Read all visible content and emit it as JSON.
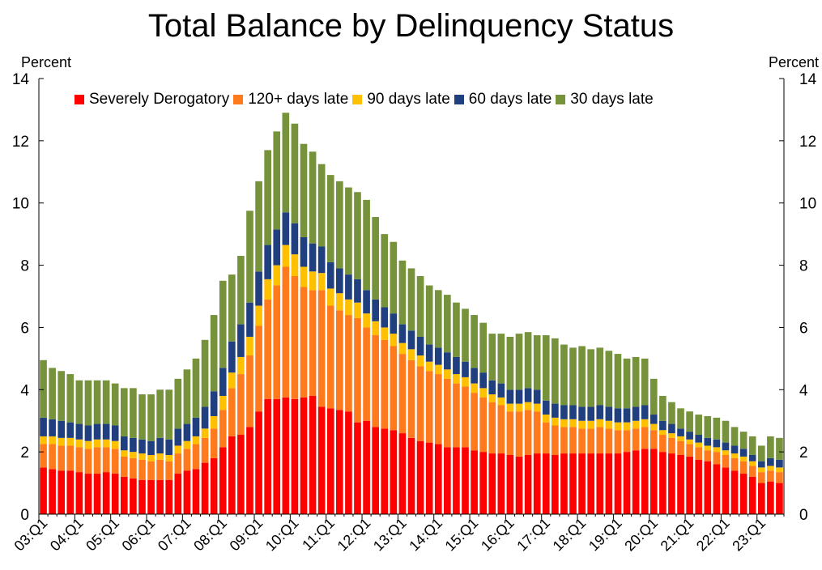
{
  "title": "Total Balance by Delinquency Status",
  "left_unit": "Percent",
  "right_unit": "Percent",
  "chart_data": {
    "type": "stacked-bar",
    "title": "Total Balance by Delinquency Status",
    "ylabel": "Percent",
    "ylim": [
      0,
      14
    ],
    "yticks": [
      "0",
      "2",
      "4",
      "6",
      "8",
      "10",
      "12",
      "14"
    ],
    "tick_labels": [
      "03:Q1",
      "04:Q1",
      "05:Q1",
      "06:Q1",
      "07:Q1",
      "08:Q1",
      "09:Q1",
      "10:Q1",
      "11:Q1",
      "12:Q1",
      "13:Q1",
      "14:Q1",
      "15:Q1",
      "16:Q1",
      "17:Q1",
      "18:Q1",
      "19:Q1",
      "20:Q1",
      "21:Q1",
      "22:Q1",
      "23:Q1"
    ],
    "quarters_count": 83,
    "legend_position": "top-left",
    "series": [
      {
        "name": "Severely Derogatory",
        "color": "#ff0000",
        "values": [
          1.5,
          1.45,
          1.4,
          1.4,
          1.35,
          1.3,
          1.3,
          1.35,
          1.3,
          1.2,
          1.15,
          1.1,
          1.1,
          1.1,
          1.1,
          1.3,
          1.4,
          1.45,
          1.65,
          1.8,
          2.15,
          2.5,
          2.55,
          2.8,
          3.3,
          3.7,
          3.7,
          3.75,
          3.7,
          3.75,
          3.8,
          3.45,
          3.4,
          3.35,
          3.3,
          2.95,
          3.0,
          2.8,
          2.75,
          2.7,
          2.6,
          2.45,
          2.35,
          2.3,
          2.25,
          2.15,
          2.15,
          2.15,
          2.05,
          2.0,
          1.95,
          1.95,
          1.9,
          1.85,
          1.9,
          1.95,
          1.95,
          1.9,
          1.95,
          1.95,
          1.95,
          1.95,
          1.95,
          1.95,
          1.95,
          2.0,
          2.05,
          2.1,
          2.1,
          2.0,
          1.95,
          1.9,
          1.85,
          1.75,
          1.7,
          1.6,
          1.5,
          1.4,
          1.3,
          1.2,
          1.0,
          1.05,
          1.0
        ]
      },
      {
        "name": "120+ days late",
        "color": "#ff7a1c",
        "values": [
          0.75,
          0.8,
          0.8,
          0.8,
          0.8,
          0.8,
          0.85,
          0.8,
          0.8,
          0.65,
          0.65,
          0.65,
          0.6,
          0.65,
          0.6,
          0.65,
          0.7,
          0.8,
          0.8,
          0.95,
          1.2,
          1.55,
          1.95,
          2.3,
          2.75,
          3.2,
          3.65,
          4.2,
          3.95,
          3.55,
          3.4,
          3.75,
          3.3,
          3.2,
          3.1,
          3.35,
          3.0,
          2.95,
          2.85,
          2.7,
          2.55,
          2.5,
          2.4,
          2.3,
          2.25,
          2.2,
          2.05,
          1.95,
          1.85,
          1.75,
          1.65,
          1.55,
          1.4,
          1.45,
          1.45,
          1.35,
          1.0,
          0.95,
          0.85,
          0.85,
          0.8,
          0.8,
          0.85,
          0.8,
          0.75,
          0.7,
          0.7,
          0.7,
          0.6,
          0.55,
          0.5,
          0.45,
          0.4,
          0.4,
          0.35,
          0.4,
          0.4,
          0.4,
          0.4,
          0.35,
          0.35,
          0.35,
          0.35
        ]
      },
      {
        "name": "90 days late",
        "color": "#ffc000",
        "values": [
          0.25,
          0.25,
          0.25,
          0.25,
          0.25,
          0.25,
          0.25,
          0.25,
          0.25,
          0.2,
          0.2,
          0.2,
          0.2,
          0.2,
          0.2,
          0.25,
          0.25,
          0.25,
          0.3,
          0.4,
          0.45,
          0.5,
          0.55,
          0.6,
          0.65,
          0.65,
          0.65,
          0.7,
          0.7,
          0.65,
          0.6,
          0.55,
          0.55,
          0.55,
          0.5,
          0.5,
          0.45,
          0.45,
          0.4,
          0.4,
          0.35,
          0.35,
          0.35,
          0.3,
          0.3,
          0.3,
          0.3,
          0.3,
          0.3,
          0.3,
          0.25,
          0.25,
          0.25,
          0.25,
          0.25,
          0.25,
          0.25,
          0.25,
          0.25,
          0.25,
          0.25,
          0.25,
          0.25,
          0.25,
          0.25,
          0.25,
          0.25,
          0.25,
          0.2,
          0.15,
          0.15,
          0.15,
          0.15,
          0.15,
          0.15,
          0.15,
          0.15,
          0.15,
          0.15,
          0.15,
          0.15,
          0.15,
          0.15
        ]
      },
      {
        "name": "60 days late",
        "color": "#1f3f7f",
        "values": [
          0.6,
          0.55,
          0.55,
          0.5,
          0.5,
          0.5,
          0.5,
          0.5,
          0.5,
          0.45,
          0.45,
          0.45,
          0.45,
          0.5,
          0.5,
          0.55,
          0.55,
          0.6,
          0.7,
          0.8,
          0.9,
          1.0,
          1.05,
          1.1,
          1.1,
          1.1,
          1.15,
          1.05,
          1.0,
          0.95,
          0.9,
          0.85,
          0.85,
          0.8,
          0.8,
          0.75,
          0.75,
          0.7,
          0.65,
          0.65,
          0.6,
          0.6,
          0.6,
          0.55,
          0.55,
          0.55,
          0.55,
          0.5,
          0.5,
          0.5,
          0.45,
          0.45,
          0.45,
          0.45,
          0.45,
          0.45,
          0.45,
          0.45,
          0.45,
          0.45,
          0.45,
          0.45,
          0.45,
          0.45,
          0.45,
          0.45,
          0.45,
          0.45,
          0.3,
          0.3,
          0.3,
          0.25,
          0.25,
          0.25,
          0.25,
          0.25,
          0.25,
          0.25,
          0.25,
          0.2,
          0.2,
          0.25,
          0.25
        ]
      },
      {
        "name": "30 days late",
        "color": "#76933c",
        "values": [
          1.85,
          1.65,
          1.6,
          1.55,
          1.4,
          1.45,
          1.4,
          1.4,
          1.35,
          1.55,
          1.6,
          1.45,
          1.5,
          1.55,
          1.6,
          1.6,
          1.75,
          1.9,
          2.15,
          2.45,
          2.8,
          2.15,
          2.2,
          2.95,
          2.9,
          3.05,
          3.15,
          3.2,
          3.2,
          3.0,
          2.95,
          2.65,
          2.8,
          2.8,
          2.8,
          2.8,
          2.9,
          2.65,
          2.35,
          2.3,
          2.05,
          2.0,
          1.95,
          1.9,
          1.85,
          1.85,
          1.75,
          1.7,
          1.7,
          1.6,
          1.5,
          1.6,
          1.7,
          1.8,
          1.8,
          1.75,
          2.1,
          2.1,
          1.95,
          1.85,
          1.95,
          1.85,
          1.85,
          1.8,
          1.75,
          1.6,
          1.6,
          1.5,
          1.15,
          0.8,
          0.7,
          0.65,
          0.65,
          0.65,
          0.7,
          0.7,
          0.7,
          0.6,
          0.55,
          0.6,
          0.5,
          0.7,
          0.7
        ]
      }
    ]
  }
}
